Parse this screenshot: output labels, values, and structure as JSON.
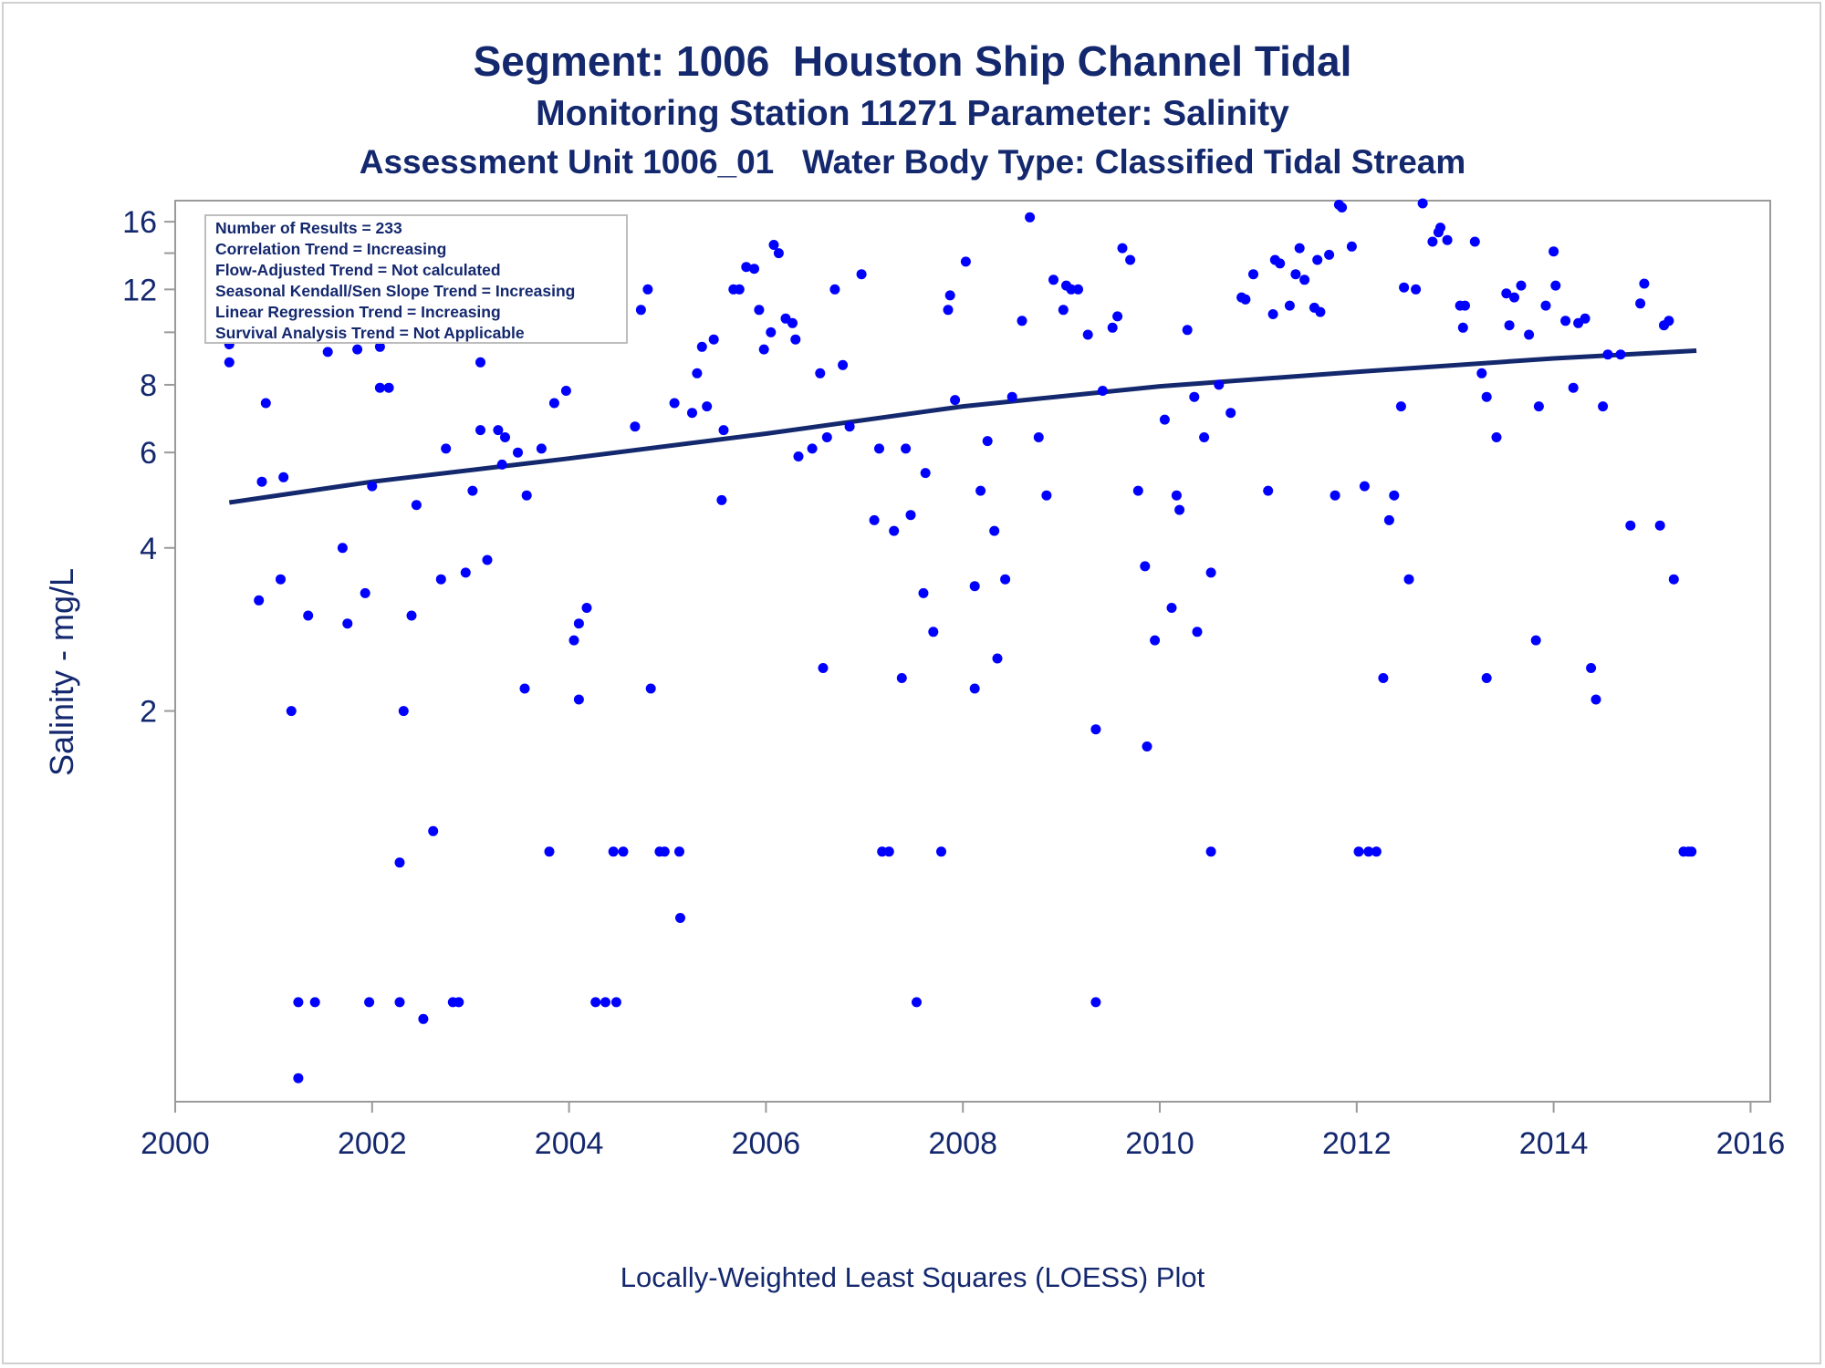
{
  "chart_data": {
    "type": "scatter",
    "title": "Segment: 1006  Houston Ship Channel Tidal",
    "subtitle": "Monitoring Station 11271 Parameter: Salinity",
    "subtitle2": "Assessment Unit 1006_01   Water Body Type: Classified Tidal Stream",
    "footnote": "Locally-Weighted Least Squares (LOESS) Plot",
    "xlabel": "",
    "ylabel": "Salinity - mg/L",
    "xlim": [
      2000,
      2016.2
    ],
    "ylim": [
      0.38,
      17.5
    ],
    "yscale": "log",
    "grid": false,
    "xticks": [
      2000,
      2002,
      2004,
      2006,
      2008,
      2010,
      2012,
      2014,
      2016
    ],
    "yticks": [
      2,
      4,
      6,
      8,
      12,
      16
    ],
    "legend_placement": "top-left",
    "stats": [
      "Number of Results = 233",
      "Correlation Trend = Increasing",
      "Flow-Adjusted Trend = Not calculated",
      "Seasonal Kendall/Sen Slope Trend = Increasing",
      "Linear Regression Trend = Increasing",
      "Survival Analysis Trend = Not Applicable"
    ],
    "colors": {
      "points": "#0000ff",
      "trend": "#14286e",
      "text": "#14286e",
      "frame": "#9a9a9a"
    },
    "trend": {
      "x": [
        2000.55,
        2002,
        2004,
        2006,
        2008,
        2010,
        2012,
        2014,
        2015.45
      ],
      "y": [
        4.85,
        5.3,
        5.85,
        6.5,
        7.3,
        7.95,
        8.45,
        8.95,
        9.25
      ]
    },
    "points": [
      [
        2000.55,
        8.8
      ],
      [
        2000.55,
        9.5
      ],
      [
        2000.65,
        13.9
      ],
      [
        2000.75,
        12.0
      ],
      [
        2000.8,
        13.0
      ],
      [
        2000.85,
        3.2
      ],
      [
        2000.88,
        5.3
      ],
      [
        2000.92,
        7.4
      ],
      [
        2001.03,
        9.8
      ],
      [
        2001.07,
        3.5
      ],
      [
        2001.1,
        5.4
      ],
      [
        2001.18,
        2.0
      ],
      [
        2001.25,
        0.58
      ],
      [
        2001.25,
        0.42
      ],
      [
        2001.35,
        3.0
      ],
      [
        2001.42,
        0.58
      ],
      [
        2001.55,
        9.2
      ],
      [
        2001.62,
        10.5
      ],
      [
        2001.7,
        4.0
      ],
      [
        2001.75,
        2.9
      ],
      [
        2001.85,
        9.3
      ],
      [
        2001.93,
        3.3
      ],
      [
        2001.97,
        0.58
      ],
      [
        2002.0,
        5.2
      ],
      [
        2002.08,
        9.4
      ],
      [
        2002.08,
        7.9
      ],
      [
        2002.17,
        7.9
      ],
      [
        2002.28,
        1.05
      ],
      [
        2002.28,
        0.58
      ],
      [
        2002.32,
        2.0
      ],
      [
        2002.4,
        3.0
      ],
      [
        2002.45,
        4.8
      ],
      [
        2002.52,
        0.54
      ],
      [
        2002.62,
        1.2
      ],
      [
        2002.7,
        3.5
      ],
      [
        2002.75,
        6.1
      ],
      [
        2002.82,
        0.58
      ],
      [
        2002.88,
        0.58
      ],
      [
        2002.95,
        3.6
      ],
      [
        2003.02,
        5.1
      ],
      [
        2003.1,
        8.8
      ],
      [
        2003.1,
        6.6
      ],
      [
        2003.17,
        3.8
      ],
      [
        2003.28,
        6.6
      ],
      [
        2003.32,
        5.7
      ],
      [
        2003.35,
        6.4
      ],
      [
        2003.48,
        6.0
      ],
      [
        2003.55,
        2.2
      ],
      [
        2003.57,
        5.0
      ],
      [
        2003.65,
        12.4
      ],
      [
        2003.72,
        6.1
      ],
      [
        2003.8,
        1.1
      ],
      [
        2003.85,
        7.4
      ],
      [
        2003.88,
        10.1
      ],
      [
        2003.97,
        7.8
      ],
      [
        2004.05,
        2.7
      ],
      [
        2004.1,
        2.1
      ],
      [
        2004.1,
        2.9
      ],
      [
        2004.18,
        3.1
      ],
      [
        2004.27,
        0.58
      ],
      [
        2004.37,
        0.58
      ],
      [
        2004.45,
        1.1
      ],
      [
        2004.48,
        0.58
      ],
      [
        2004.55,
        1.1
      ],
      [
        2004.67,
        6.7
      ],
      [
        2004.73,
        11.0
      ],
      [
        2004.8,
        12.0
      ],
      [
        2004.83,
        2.2
      ],
      [
        2004.92,
        1.1
      ],
      [
        2004.97,
        1.1
      ],
      [
        2005.07,
        7.4
      ],
      [
        2005.12,
        1.1
      ],
      [
        2005.13,
        0.83
      ],
      [
        2005.25,
        7.1
      ],
      [
        2005.3,
        8.4
      ],
      [
        2005.35,
        9.4
      ],
      [
        2005.4,
        7.3
      ],
      [
        2005.47,
        9.7
      ],
      [
        2005.55,
        4.9
      ],
      [
        2005.57,
        6.6
      ],
      [
        2005.67,
        12.0
      ],
      [
        2005.73,
        12.0
      ],
      [
        2005.8,
        13.2
      ],
      [
        2005.88,
        13.1
      ],
      [
        2005.93,
        11.0
      ],
      [
        2005.98,
        9.3
      ],
      [
        2006.05,
        10.0
      ],
      [
        2006.08,
        14.5
      ],
      [
        2006.13,
        14.0
      ],
      [
        2006.2,
        10.6
      ],
      [
        2006.27,
        10.4
      ],
      [
        2006.3,
        9.7
      ],
      [
        2006.33,
        5.9
      ],
      [
        2006.47,
        6.1
      ],
      [
        2006.55,
        8.4
      ],
      [
        2006.58,
        2.4
      ],
      [
        2006.62,
        6.4
      ],
      [
        2006.7,
        12.0
      ],
      [
        2006.78,
        8.7
      ],
      [
        2006.85,
        6.7
      ],
      [
        2006.97,
        12.8
      ],
      [
        2007.1,
        4.5
      ],
      [
        2007.15,
        6.1
      ],
      [
        2007.18,
        1.1
      ],
      [
        2007.25,
        1.1
      ],
      [
        2007.3,
        4.3
      ],
      [
        2007.38,
        2.3
      ],
      [
        2007.42,
        6.1
      ],
      [
        2007.47,
        4.6
      ],
      [
        2007.53,
        0.58
      ],
      [
        2007.6,
        3.3
      ],
      [
        2007.62,
        5.5
      ],
      [
        2007.7,
        2.8
      ],
      [
        2007.78,
        1.1
      ],
      [
        2007.85,
        11.0
      ],
      [
        2007.87,
        11.7
      ],
      [
        2007.92,
        7.5
      ],
      [
        2008.03,
        13.5
      ],
      [
        2008.12,
        3.4
      ],
      [
        2008.12,
        2.2
      ],
      [
        2008.18,
        5.1
      ],
      [
        2008.25,
        6.3
      ],
      [
        2008.32,
        4.3
      ],
      [
        2008.35,
        2.5
      ],
      [
        2008.43,
        3.5
      ],
      [
        2008.5,
        7.6
      ],
      [
        2008.6,
        10.5
      ],
      [
        2008.68,
        16.3
      ],
      [
        2008.77,
        6.4
      ],
      [
        2008.85,
        5.0
      ],
      [
        2008.92,
        12.5
      ],
      [
        2009.02,
        11.0
      ],
      [
        2009.05,
        12.2
      ],
      [
        2009.1,
        12.0
      ],
      [
        2009.17,
        12.0
      ],
      [
        2009.27,
        9.9
      ],
      [
        2009.35,
        0.58
      ],
      [
        2009.35,
        1.85
      ],
      [
        2009.42,
        7.8
      ],
      [
        2009.52,
        10.2
      ],
      [
        2009.57,
        10.7
      ],
      [
        2009.62,
        14.3
      ],
      [
        2009.7,
        13.6
      ],
      [
        2009.78,
        5.1
      ],
      [
        2009.85,
        3.7
      ],
      [
        2009.87,
        1.72
      ],
      [
        2009.95,
        2.7
      ],
      [
        2010.05,
        6.9
      ],
      [
        2010.12,
        3.1
      ],
      [
        2010.17,
        5.0
      ],
      [
        2010.2,
        4.7
      ],
      [
        2010.28,
        10.1
      ],
      [
        2010.35,
        7.6
      ],
      [
        2010.38,
        2.8
      ],
      [
        2010.45,
        6.4
      ],
      [
        2010.52,
        3.6
      ],
      [
        2010.52,
        1.1
      ],
      [
        2010.6,
        8.0
      ],
      [
        2010.72,
        7.1
      ],
      [
        2010.83,
        11.6
      ],
      [
        2010.87,
        11.5
      ],
      [
        2010.95,
        12.8
      ],
      [
        2011.1,
        5.1
      ],
      [
        2011.15,
        10.8
      ],
      [
        2011.17,
        13.6
      ],
      [
        2011.22,
        13.4
      ],
      [
        2011.32,
        11.2
      ],
      [
        2011.38,
        12.8
      ],
      [
        2011.42,
        14.3
      ],
      [
        2011.47,
        12.5
      ],
      [
        2011.57,
        11.1
      ],
      [
        2011.6,
        13.6
      ],
      [
        2011.63,
        10.9
      ],
      [
        2011.72,
        13.9
      ],
      [
        2011.78,
        5.0
      ],
      [
        2011.82,
        17.2
      ],
      [
        2011.85,
        17.0
      ],
      [
        2011.95,
        14.4
      ],
      [
        2012.02,
        1.1
      ],
      [
        2012.08,
        5.2
      ],
      [
        2012.12,
        1.1
      ],
      [
        2012.2,
        1.1
      ],
      [
        2012.27,
        2.3
      ],
      [
        2012.33,
        4.5
      ],
      [
        2012.38,
        5.0
      ],
      [
        2012.45,
        7.3
      ],
      [
        2012.48,
        12.1
      ],
      [
        2012.53,
        3.5
      ],
      [
        2012.6,
        12.0
      ],
      [
        2012.67,
        17.3
      ],
      [
        2012.77,
        14.7
      ],
      [
        2012.83,
        15.3
      ],
      [
        2012.85,
        15.6
      ],
      [
        2012.92,
        14.8
      ],
      [
        2013.05,
        11.2
      ],
      [
        2013.08,
        10.2
      ],
      [
        2013.1,
        11.2
      ],
      [
        2013.2,
        14.7
      ],
      [
        2013.27,
        8.4
      ],
      [
        2013.32,
        2.3
      ],
      [
        2013.32,
        7.6
      ],
      [
        2013.42,
        6.4
      ],
      [
        2013.52,
        11.8
      ],
      [
        2013.55,
        10.3
      ],
      [
        2013.6,
        11.6
      ],
      [
        2013.67,
        12.2
      ],
      [
        2013.75,
        9.9
      ],
      [
        2013.82,
        2.7
      ],
      [
        2013.85,
        7.3
      ],
      [
        2013.92,
        11.2
      ],
      [
        2014.0,
        14.1
      ],
      [
        2014.02,
        12.2
      ],
      [
        2014.12,
        10.5
      ],
      [
        2014.2,
        7.9
      ],
      [
        2014.25,
        10.4
      ],
      [
        2014.32,
        10.6
      ],
      [
        2014.38,
        2.4
      ],
      [
        2014.43,
        2.1
      ],
      [
        2014.5,
        7.3
      ],
      [
        2014.55,
        9.1
      ],
      [
        2014.68,
        9.1
      ],
      [
        2014.78,
        4.4
      ],
      [
        2014.88,
        11.3
      ],
      [
        2014.92,
        12.3
      ],
      [
        2015.08,
        4.4
      ],
      [
        2015.12,
        10.3
      ],
      [
        2015.17,
        10.5
      ],
      [
        2015.22,
        3.5
      ],
      [
        2015.32,
        1.1
      ],
      [
        2015.37,
        1.1
      ],
      [
        2015.4,
        1.1
      ]
    ]
  }
}
